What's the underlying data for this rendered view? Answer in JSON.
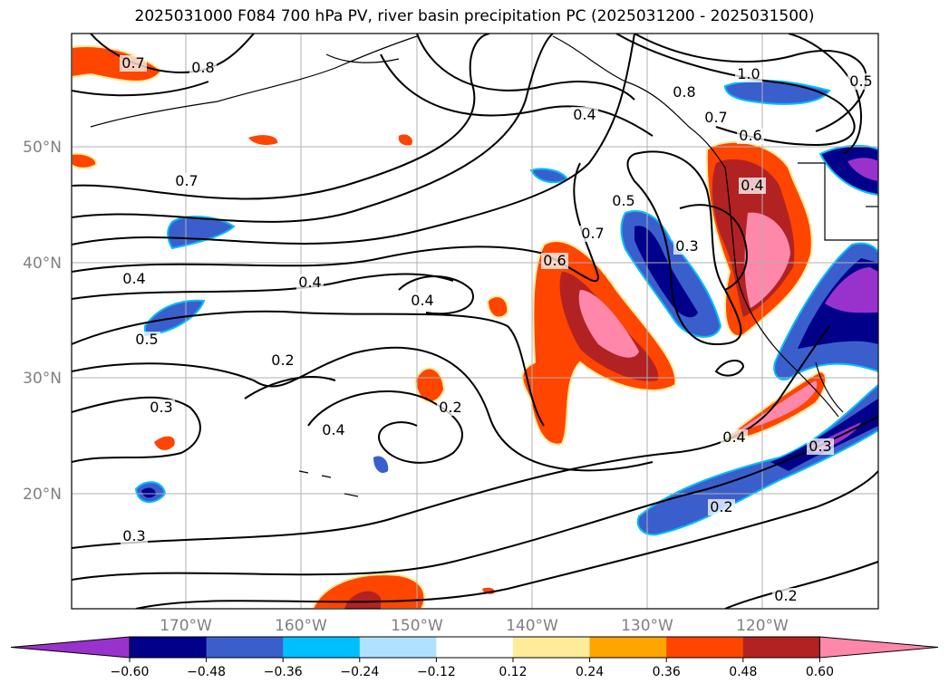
{
  "title": "2025031000 F084 700 hPa PV, river basin precipitation PC (2025031200 - 2025031500)",
  "lat_labels": [
    "50°N",
    "40°N",
    "30°N",
    "20°N"
  ],
  "lon_labels": [
    "170°W",
    "160°W",
    "150°W",
    "140°W",
    "130°W",
    "120°W"
  ],
  "contour_labels": [
    "0.7",
    "0.8",
    "1.0",
    "0.8",
    "0.7",
    "0.6",
    "0.5",
    "0.4",
    "0.7",
    "0.5",
    "0.3",
    "0.4",
    "0.7",
    "0.6",
    "0.4",
    "0.4",
    "0.4",
    "0.5",
    "0.2",
    "0.3",
    "0.4",
    "0.2",
    "0.4",
    "0.3",
    "0.2",
    "0.3",
    "0.2"
  ],
  "colorbar": {
    "ticks": [
      "−0.60",
      "−0.48",
      "−0.36",
      "−0.24",
      "−0.12",
      "0.12",
      "0.24",
      "0.36",
      "0.48",
      "0.60"
    ],
    "colors": [
      "#9932cc",
      "#00008b",
      "#3a5fcd",
      "#00bfff",
      "#b0e2ff",
      "#ffffff",
      "#ffeb99",
      "#ffa500",
      "#ff4500",
      "#b22222",
      "#ff88aa"
    ]
  }
}
